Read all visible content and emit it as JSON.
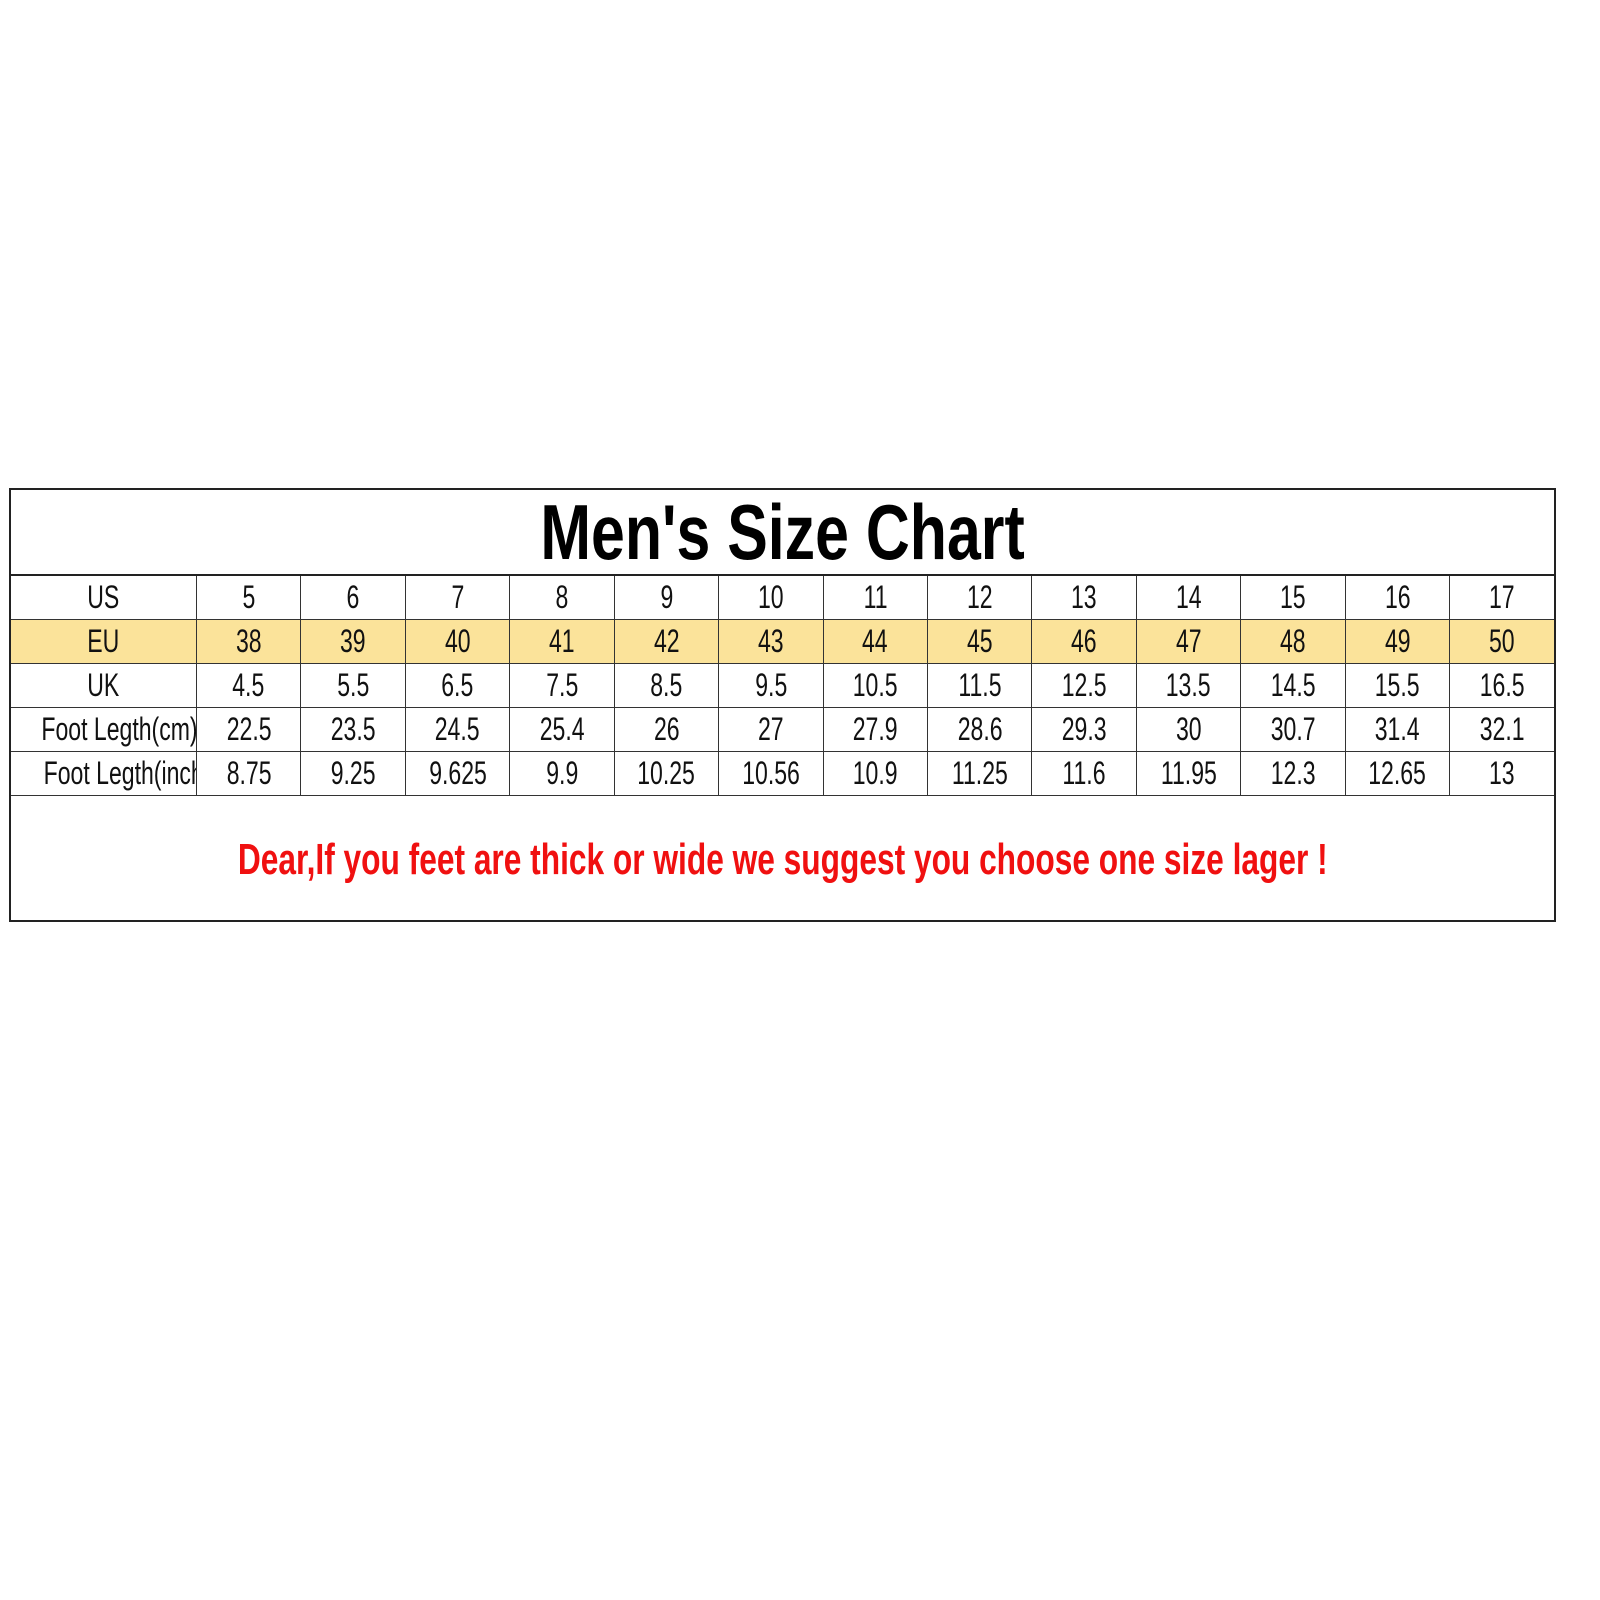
{
  "title": "Men's Size Chart",
  "colors": {
    "eu_row_bg": "#fbe39a",
    "note_text": "#f01010"
  },
  "rows": [
    {
      "label": "US",
      "values": [
        "5",
        "6",
        "7",
        "8",
        "9",
        "10",
        "11",
        "12",
        "13",
        "14",
        "15",
        "16",
        "17"
      ]
    },
    {
      "label": "EU",
      "values": [
        "38",
        "39",
        "40",
        "41",
        "42",
        "43",
        "44",
        "45",
        "46",
        "47",
        "48",
        "49",
        "50"
      ]
    },
    {
      "label": "UK",
      "values": [
        "4.5",
        "5.5",
        "6.5",
        "7.5",
        "8.5",
        "9.5",
        "10.5",
        "11.5",
        "12.5",
        "13.5",
        "14.5",
        "15.5",
        "16.5"
      ]
    },
    {
      "label": "Foot Legth(cm)",
      "values": [
        "22.5",
        "23.5",
        "24.5",
        "25.4",
        "26",
        "27",
        "27.9",
        "28.6",
        "29.3",
        "30",
        "30.7",
        "31.4",
        "32.1"
      ]
    },
    {
      "label": "Foot Legth(inch)",
      "values": [
        "8.75",
        "9.25",
        "9.625",
        "9.9",
        "10.25",
        "10.56",
        "10.9",
        "11.25",
        "11.6",
        "11.95",
        "12.3",
        "12.65",
        "13"
      ]
    }
  ],
  "note": "Dear,If you feet are thick or wide we suggest you choose one size lager !"
}
